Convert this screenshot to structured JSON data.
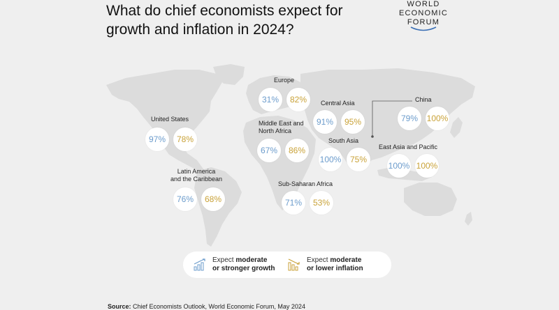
{
  "title": "What do chief economists expect for growth and inflation in 2024?",
  "logo": {
    "line1": "WORLD",
    "line2": "ECONOMIC",
    "line3": "FORUM"
  },
  "colors": {
    "growth": "#6c9ccc",
    "inflation": "#c9a238",
    "background": "#efefef",
    "land": "#dcdcdc"
  },
  "chart_data": {
    "type": "map",
    "metrics": [
      "Expect moderate or stronger growth",
      "Expect moderate or lower inflation"
    ],
    "regions": [
      {
        "name": "United States",
        "growth": "97%",
        "inflation": "78%"
      },
      {
        "name": "Latin America and the Caribbean",
        "growth": "76%",
        "inflation": "68%"
      },
      {
        "name": "Europe",
        "growth": "31%",
        "inflation": "82%"
      },
      {
        "name": "Middle East and North Africa",
        "growth": "67%",
        "inflation": "86%"
      },
      {
        "name": "Sub-Saharan Africa",
        "growth": "71%",
        "inflation": "53%"
      },
      {
        "name": "Central Asia",
        "growth": "91%",
        "inflation": "95%"
      },
      {
        "name": "South Asia",
        "growth": "100%",
        "inflation": "75%"
      },
      {
        "name": "China",
        "growth": "79%",
        "inflation": "100%"
      },
      {
        "name": "East Asia and Pacific",
        "growth": "100%",
        "inflation": "100%"
      }
    ]
  },
  "legend": {
    "growth": {
      "lead": "Expect ",
      "bold1": "moderate",
      "bold2": "or stronger growth",
      "icon": "growth-bars-icon"
    },
    "inflation": {
      "lead": "Expect ",
      "bold1": "moderate",
      "bold2": "or lower inflation",
      "icon": "inflation-bars-icon"
    }
  },
  "source": {
    "label": "Source:",
    "text": " Chief Economists Outlook, World Economic Forum, May 2024"
  }
}
